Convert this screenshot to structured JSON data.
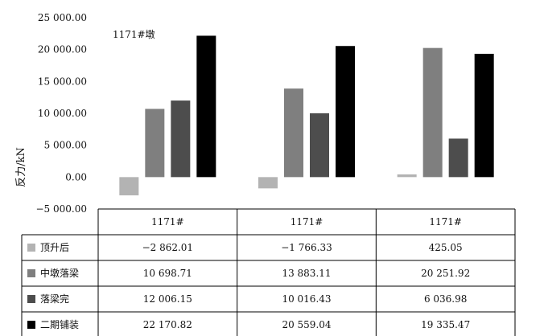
{
  "chart_data": {
    "type": "bar",
    "annotation": "1171#墩",
    "ylabel": "反力/kN",
    "xlabel": "",
    "ylim": [
      -5000,
      25000
    ],
    "yticks": [
      {
        "value": 25000,
        "label": "25 000.00"
      },
      {
        "value": 20000,
        "label": "20 000.00"
      },
      {
        "value": 15000,
        "label": "15 000.00"
      },
      {
        "value": 10000,
        "label": "10 000.00"
      },
      {
        "value": 5000,
        "label": "5 000.00"
      },
      {
        "value": 0,
        "label": "0.00"
      },
      {
        "value": -5000,
        "label": "−5 000.00"
      }
    ],
    "categories": [
      "1171#",
      "1171#",
      "1171#"
    ],
    "grid": false,
    "legend": "table-left",
    "series": [
      {
        "name": "顶升后",
        "color": "#b3b3b3",
        "values": [
          -2862.01,
          -1766.33,
          425.05
        ],
        "labels": [
          "−2 862.01",
          "−1 766.33",
          "425.05"
        ]
      },
      {
        "name": "中墩落梁",
        "color": "#7f7f7f",
        "values": [
          10698.71,
          13883.11,
          20251.92
        ],
        "labels": [
          "10 698.71",
          "13 883.11",
          "20 251.92"
        ]
      },
      {
        "name": "落梁完",
        "color": "#4d4d4d",
        "values": [
          12006.15,
          10016.43,
          6036.98
        ],
        "labels": [
          "12 006.15",
          "10 016.43",
          "6 036.98"
        ]
      },
      {
        "name": "二期铺装",
        "color": "#000000",
        "values": [
          22170.82,
          20559.04,
          19335.47
        ],
        "labels": [
          "22 170.82",
          "20 559.04",
          "19 335.47"
        ]
      }
    ]
  }
}
